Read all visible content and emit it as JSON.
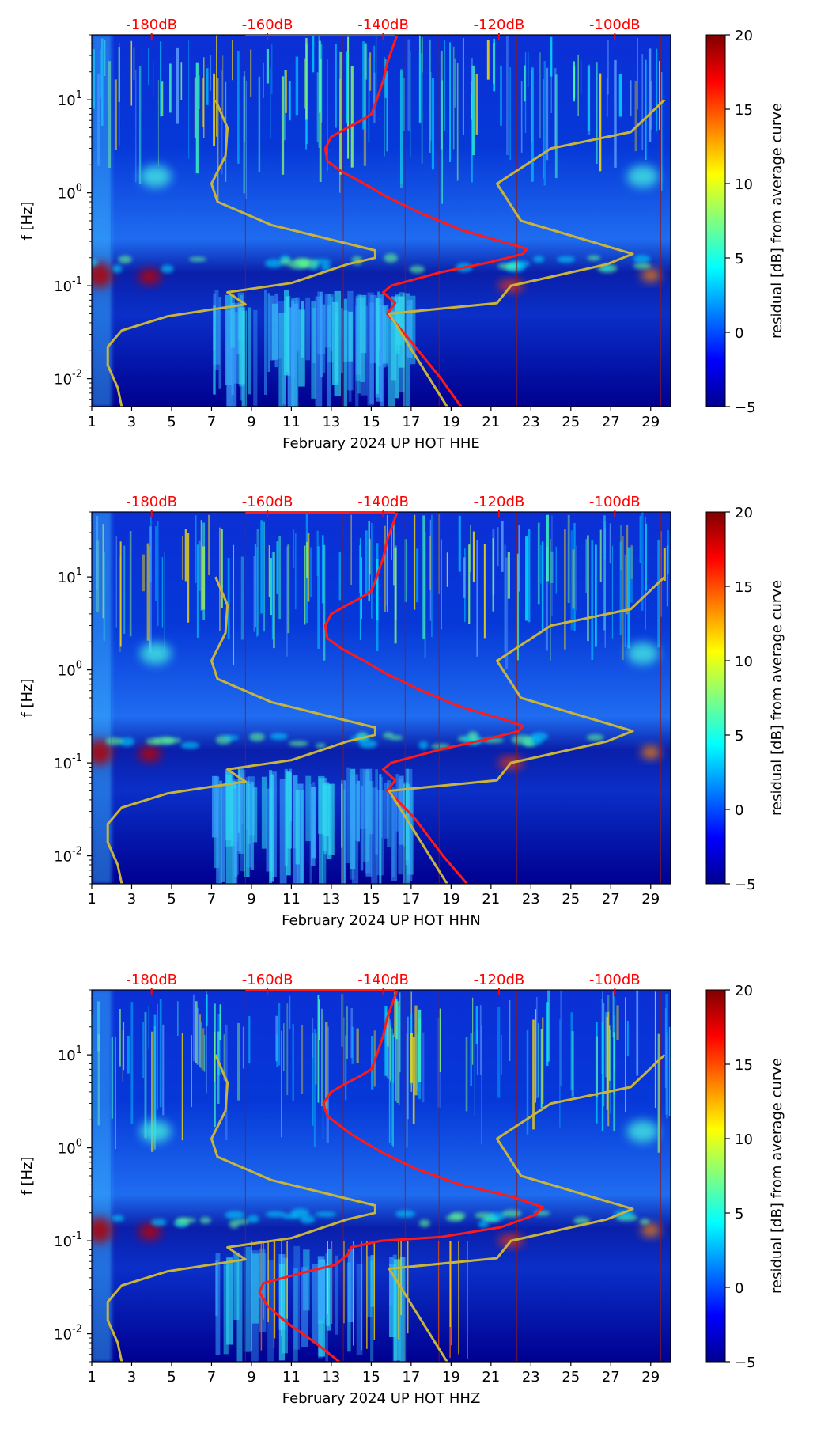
{
  "colors": {
    "psd_curve": "#ff1a1a",
    "model_curve": "#c8b43c",
    "db_label": "#ff0000",
    "tick_text": "#000000",
    "plot_bg": "#00008f"
  },
  "chart_data": [
    {
      "type": "heatmap",
      "title": "",
      "xlabel": "February 2024 UP HOT  HHE",
      "ylabel": "f [Hz]",
      "x_ticks": [
        "1",
        "3",
        "5",
        "7",
        "9",
        "11",
        "13",
        "15",
        "17",
        "19",
        "21",
        "23",
        "25",
        "27",
        "29"
      ],
      "y_ticks": [
        "10^-2",
        "10^-1",
        "10^0",
        "10^1"
      ],
      "xlim": [
        1,
        30
      ],
      "ylim": [
        0.005,
        50
      ],
      "top_axis_ticks": [
        "-180dB",
        "-160dB",
        "-140dB",
        "-120dB",
        "-100dB"
      ],
      "colorbar": {
        "label": "residual [dB] from average curve",
        "min": -5,
        "max": 20,
        "ticks": [
          "-5",
          "0",
          "5",
          "10",
          "15",
          "20"
        ]
      },
      "series": [
        {
          "name": "PSD curve",
          "points": [
            [
              19.5,
              0.005
            ],
            [
              18.5,
              0.01
            ],
            [
              17,
              0.025
            ],
            [
              16.2,
              0.04
            ],
            [
              15.8,
              0.05
            ],
            [
              16.2,
              0.065
            ],
            [
              15.6,
              0.085
            ],
            [
              16,
              0.1
            ],
            [
              18.5,
              0.14
            ],
            [
              21,
              0.18
            ],
            [
              22.6,
              0.22
            ],
            [
              22.8,
              0.25
            ],
            [
              21.5,
              0.3
            ],
            [
              19.5,
              0.4
            ],
            [
              17.5,
              0.6
            ],
            [
              15.8,
              0.9
            ],
            [
              14.5,
              1.3
            ],
            [
              13.5,
              1.7
            ],
            [
              12.8,
              2.2
            ],
            [
              12.7,
              3
            ],
            [
              13,
              4
            ],
            [
              13.8,
              5
            ],
            [
              14.5,
              6
            ],
            [
              15,
              7
            ],
            [
              15.2,
              9
            ],
            [
              15.4,
              12
            ],
            [
              15.6,
              16
            ],
            [
              15.8,
              25
            ],
            [
              16.3,
              50
            ]
          ]
        },
        {
          "name": "Model curve",
          "points": [
            [
              2.5,
              0.005
            ],
            [
              2.3,
              0.008
            ],
            [
              1.8,
              0.014
            ],
            [
              1.8,
              0.022
            ],
            [
              2.5,
              0.033
            ],
            [
              4.8,
              0.047
            ],
            [
              8.7,
              0.063
            ],
            [
              7.8,
              0.085
            ],
            [
              11,
              0.107
            ],
            [
              13.8,
              0.17
            ],
            [
              15.2,
              0.2
            ],
            [
              15.2,
              0.24
            ],
            [
              10,
              0.45
            ],
            [
              7.3,
              0.8
            ],
            [
              7,
              1.25
            ],
            [
              7.7,
              2.5
            ],
            [
              7.8,
              5
            ],
            [
              7.2,
              10
            ],
            [
              null,
              null
            ],
            [
              18.8,
              0.005
            ],
            [
              15.9,
              0.05
            ],
            [
              21.3,
              0.065
            ],
            [
              22,
              0.1
            ],
            [
              26.8,
              0.17
            ],
            [
              28.1,
              0.22
            ],
            [
              22.5,
              0.5
            ],
            [
              21.3,
              1.25
            ],
            [
              24,
              3
            ],
            [
              28,
              4.5
            ],
            [
              29.7,
              10
            ]
          ]
        }
      ]
    },
    {
      "type": "heatmap",
      "title": "",
      "xlabel": "February 2024 UP HOT  HHN",
      "ylabel": "f [Hz]",
      "x_ticks": [
        "1",
        "3",
        "5",
        "7",
        "9",
        "11",
        "13",
        "15",
        "17",
        "19",
        "21",
        "23",
        "25",
        "27",
        "29"
      ],
      "y_ticks": [
        "10^-2",
        "10^-1",
        "10^0",
        "10^1"
      ],
      "xlim": [
        1,
        30
      ],
      "ylim": [
        0.005,
        50
      ],
      "top_axis_ticks": [
        "-180dB",
        "-160dB",
        "-140dB",
        "-120dB",
        "-100dB"
      ],
      "colorbar": {
        "label": "residual [dB] from average curve",
        "min": -5,
        "max": 20,
        "ticks": [
          "-5",
          "0",
          "5",
          "10",
          "15",
          "20"
        ]
      },
      "series": [
        {
          "name": "PSD curve",
          "points": [
            [
              19.8,
              0.005
            ],
            [
              18.6,
              0.01
            ],
            [
              17.2,
              0.025
            ],
            [
              16.3,
              0.04
            ],
            [
              15.8,
              0.05
            ],
            [
              16.2,
              0.065
            ],
            [
              15.6,
              0.085
            ],
            [
              16,
              0.1
            ],
            [
              18.5,
              0.14
            ],
            [
              20.8,
              0.18
            ],
            [
              22.4,
              0.22
            ],
            [
              22.6,
              0.25
            ],
            [
              21.5,
              0.3
            ],
            [
              19.5,
              0.4
            ],
            [
              17.5,
              0.6
            ],
            [
              15.8,
              0.9
            ],
            [
              14.5,
              1.3
            ],
            [
              13.5,
              1.7
            ],
            [
              12.8,
              2.2
            ],
            [
              12.7,
              3
            ],
            [
              13,
              4
            ],
            [
              13.8,
              5
            ],
            [
              14.5,
              6
            ],
            [
              15,
              7
            ],
            [
              15.2,
              9
            ],
            [
              15.4,
              12
            ],
            [
              15.6,
              16
            ],
            [
              15.8,
              25
            ],
            [
              16.3,
              50
            ]
          ]
        },
        {
          "name": "Model curve",
          "points": [
            [
              2.5,
              0.005
            ],
            [
              2.3,
              0.008
            ],
            [
              1.8,
              0.014
            ],
            [
              1.8,
              0.022
            ],
            [
              2.5,
              0.033
            ],
            [
              4.8,
              0.047
            ],
            [
              8.7,
              0.063
            ],
            [
              7.8,
              0.085
            ],
            [
              11,
              0.107
            ],
            [
              13.8,
              0.17
            ],
            [
              15.2,
              0.2
            ],
            [
              15.2,
              0.24
            ],
            [
              10,
              0.45
            ],
            [
              7.3,
              0.8
            ],
            [
              7,
              1.25
            ],
            [
              7.7,
              2.5
            ],
            [
              7.8,
              5
            ],
            [
              7.2,
              10
            ],
            [
              null,
              null
            ],
            [
              18.8,
              0.005
            ],
            [
              15.9,
              0.05
            ],
            [
              21.3,
              0.065
            ],
            [
              22,
              0.1
            ],
            [
              26.8,
              0.17
            ],
            [
              28.1,
              0.22
            ],
            [
              22.5,
              0.5
            ],
            [
              21.3,
              1.25
            ],
            [
              24,
              3
            ],
            [
              28,
              4.5
            ],
            [
              29.7,
              10
            ]
          ]
        }
      ]
    },
    {
      "type": "heatmap",
      "title": "",
      "xlabel": "February 2024 UP HOT  HHZ",
      "ylabel": "f [Hz]",
      "x_ticks": [
        "1",
        "3",
        "5",
        "7",
        "9",
        "11",
        "13",
        "15",
        "17",
        "19",
        "21",
        "23",
        "25",
        "27",
        "29"
      ],
      "y_ticks": [
        "10^-2",
        "10^-1",
        "10^0",
        "10^1"
      ],
      "xlim": [
        1,
        30
      ],
      "ylim": [
        0.005,
        50
      ],
      "top_axis_ticks": [
        "-180dB",
        "-160dB",
        "-140dB",
        "-120dB",
        "-100dB"
      ],
      "colorbar": {
        "label": "residual [dB] from average curve",
        "min": -5,
        "max": 20,
        "ticks": [
          "-5",
          "0",
          "5",
          "10",
          "15",
          "20"
        ]
      },
      "series": [
        {
          "name": "PSD curve",
          "points": [
            [
              13.4,
              0.005
            ],
            [
              12.2,
              0.008
            ],
            [
              10.8,
              0.013
            ],
            [
              9.8,
              0.02
            ],
            [
              9.4,
              0.028
            ],
            [
              9.6,
              0.035
            ],
            [
              11.5,
              0.045
            ],
            [
              13.2,
              0.055
            ],
            [
              13.8,
              0.07
            ],
            [
              14,
              0.085
            ],
            [
              15.5,
              0.1
            ],
            [
              18.5,
              0.11
            ],
            [
              21.5,
              0.14
            ],
            [
              23.2,
              0.19
            ],
            [
              23.6,
              0.23
            ],
            [
              22,
              0.3
            ],
            [
              19.5,
              0.4
            ],
            [
              17.2,
              0.6
            ],
            [
              15.5,
              0.9
            ],
            [
              14,
              1.4
            ],
            [
              12.8,
              2.2
            ],
            [
              12.6,
              3
            ],
            [
              13,
              4
            ],
            [
              13.8,
              5
            ],
            [
              14.5,
              6
            ],
            [
              15,
              7
            ],
            [
              15.2,
              9
            ],
            [
              15.4,
              12
            ],
            [
              15.6,
              16
            ],
            [
              15.8,
              25
            ],
            [
              16.3,
              50
            ]
          ]
        },
        {
          "name": "Model curve",
          "points": [
            [
              2.5,
              0.005
            ],
            [
              2.3,
              0.008
            ],
            [
              1.8,
              0.014
            ],
            [
              1.8,
              0.022
            ],
            [
              2.5,
              0.033
            ],
            [
              4.8,
              0.047
            ],
            [
              8.7,
              0.063
            ],
            [
              7.8,
              0.085
            ],
            [
              11,
              0.107
            ],
            [
              13.8,
              0.17
            ],
            [
              15.2,
              0.2
            ],
            [
              15.2,
              0.24
            ],
            [
              10,
              0.45
            ],
            [
              7.3,
              0.8
            ],
            [
              7,
              1.25
            ],
            [
              7.7,
              2.5
            ],
            [
              7.8,
              5
            ],
            [
              7.2,
              10
            ],
            [
              null,
              null
            ],
            [
              18.8,
              0.005
            ],
            [
              15.9,
              0.05
            ],
            [
              21.3,
              0.065
            ],
            [
              22,
              0.1
            ],
            [
              26.8,
              0.17
            ],
            [
              28.1,
              0.22
            ],
            [
              22.5,
              0.5
            ],
            [
              21.3,
              1.25
            ],
            [
              24,
              3
            ],
            [
              28,
              4.5
            ],
            [
              29.7,
              10
            ]
          ]
        }
      ]
    }
  ]
}
